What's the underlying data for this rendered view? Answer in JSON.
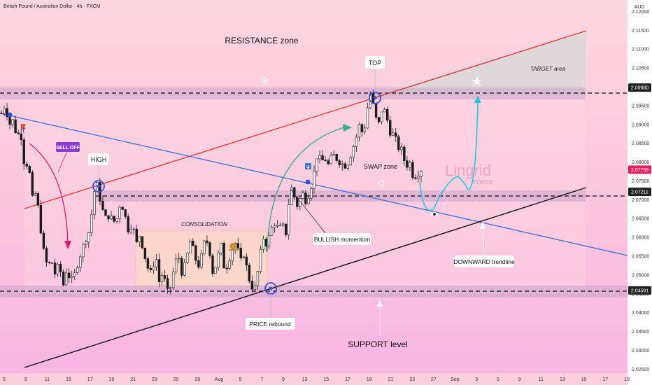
{
  "header": {
    "title": "British Pound / Australian Dollar · 4h · FXCM",
    "currency": "AUD"
  },
  "chart_data": {
    "type": "candlestick",
    "ylim": [
      2.0245,
      2.1225
    ],
    "y_ticks": [
      "2.12000",
      "2.11500",
      "2.11000",
      "2.10500",
      "2.10000",
      "2.09500",
      "2.09000",
      "2.08500",
      "2.08000",
      "2.07500",
      "2.07000",
      "2.06500",
      "2.06000",
      "2.05500",
      "2.05000",
      "2.04500",
      "2.04000",
      "2.03500",
      "2.03000",
      "2.02500"
    ],
    "x_ticks": [
      "5",
      "9",
      "11",
      "15",
      "17",
      "19",
      "21",
      "23",
      "25",
      "29",
      "Aug",
      "5",
      "7",
      "9",
      "13",
      "15",
      "17",
      "19",
      "21",
      "23",
      "27",
      "Sep",
      "3",
      "5",
      "9",
      "11",
      "13",
      "15",
      "17",
      "19"
    ],
    "price_tags": [
      {
        "value": "2.09980",
        "color": "#222222"
      },
      {
        "value": "2.07799",
        "color": "#e91e63"
      },
      {
        "value": "2.07211",
        "color": "#222222"
      },
      {
        "value": "2.04591",
        "color": "#222222"
      }
    ],
    "levels": {
      "resistance": 2.0998,
      "swap": 2.0721,
      "support": 2.0459
    },
    "path_points": [
      2.093,
      2.0955,
      2.09,
      2.091,
      2.087,
      2.088,
      2.079,
      2.08,
      2.07,
      2.072,
      2.064,
      2.056,
      2.052,
      2.054,
      2.05,
      2.053,
      2.047,
      2.052,
      2.048,
      2.05,
      2.054,
      2.057,
      2.06,
      2.062,
      2.072,
      2.074,
      2.068,
      2.065,
      2.066,
      2.064,
      2.065,
      2.07,
      2.066,
      2.062,
      2.064,
      2.058,
      2.061,
      2.056,
      2.052,
      2.05,
      2.056,
      2.048,
      2.051,
      2.045,
      2.047,
      2.053,
      2.055,
      2.05,
      2.054,
      2.059,
      2.056,
      2.052,
      2.055,
      2.06,
      2.057,
      2.05,
      2.054,
      2.058,
      2.051,
      2.054,
      2.057,
      2.059,
      2.053,
      2.056,
      2.05,
      2.047,
      2.0465,
      2.054,
      2.06,
      2.058,
      2.062,
      2.064,
      2.062,
      2.063,
      2.061,
      2.074,
      2.071,
      2.068,
      2.072,
      2.07,
      2.072,
      2.076,
      2.082,
      2.08,
      2.081,
      2.079,
      2.082,
      2.081,
      2.08,
      2.079,
      2.08,
      2.083,
      2.086,
      2.09,
      2.087,
      2.094,
      2.099,
      2.092,
      2.09,
      2.095,
      2.092,
      2.088,
      2.087,
      2.084,
      2.083,
      2.079,
      2.08,
      2.076,
      2.077,
      2.078
    ]
  },
  "annotations": {
    "resistance_zone": "RESISTANCE zone",
    "top": "TOP",
    "target_area": "TARGET area",
    "sell_off": "SELL OFF",
    "high": "HIGH",
    "swap_zone": "SWAP zone",
    "consolidation": "CONSOLIDATION",
    "bullish_momentum": "BULLISH momentum",
    "downward_trendline": "DOWNWARD trendline",
    "price_rebound": "PRICE rebound",
    "support_level": "SUPPORT level",
    "watermark_main": "Lingrid",
    "watermark_sub": "FOREX"
  },
  "colors": {
    "background_top": "#fbd3dc",
    "background_bottom": "#f8b8e4",
    "candle": "#1a1a1a",
    "zone_band": "#c8a2c8",
    "resistance_line": "#e53935",
    "support_line": "#111111",
    "downtrend_line": "#3f6fd8",
    "projection": "#21c4dd",
    "rebound_arrow": "#3fa98e",
    "selloff_arrow": "#d81b60",
    "marker": "#3553d6"
  }
}
